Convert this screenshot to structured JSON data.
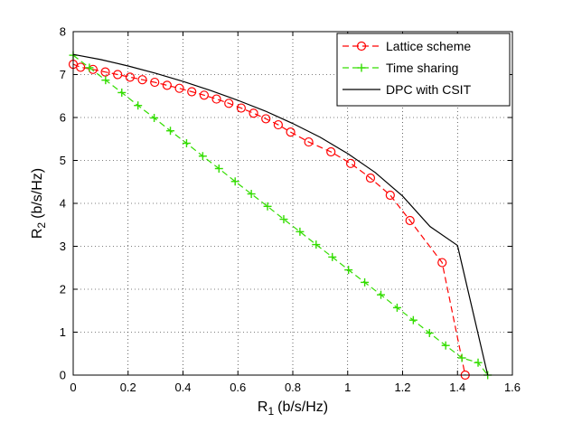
{
  "chart_data": {
    "type": "line",
    "title": "",
    "xlabel": "R",
    "xlabel_subscript": "1",
    "xlabel_unit": "(b/s/Hz)",
    "ylabel": "R",
    "ylabel_subscript": "2",
    "ylabel_unit": "(b/s/Hz)",
    "xlim": [
      0,
      1.6
    ],
    "ylim": [
      0,
      8
    ],
    "xticks": [
      0,
      0.2,
      0.4,
      0.6,
      0.8,
      1,
      1.2,
      1.4,
      1.6
    ],
    "xtick_labels": [
      "0",
      "0.2",
      "0.4",
      "0.6",
      "0.8",
      "1",
      "1.2",
      "1.4",
      "1.6"
    ],
    "yticks": [
      0,
      1,
      2,
      3,
      4,
      5,
      6,
      7,
      8
    ],
    "ytick_labels": [
      "0",
      "1",
      "2",
      "3",
      "4",
      "5",
      "6",
      "7",
      "8"
    ],
    "grid": true,
    "legend_position": "top-right",
    "series": [
      {
        "name": "Lattice scheme",
        "color": "#ff0000",
        "line_style": "dashed",
        "marker": "circle",
        "x": [
          0,
          0.027,
          0.072,
          0.117,
          0.162,
          0.207,
          0.252,
          0.297,
          0.342,
          0.387,
          0.432,
          0.477,
          0.522,
          0.567,
          0.612,
          0.657,
          0.702,
          0.747,
          0.792,
          0.858,
          0.939,
          1.011,
          1.083,
          1.155,
          1.227,
          1.344,
          1.428
        ],
        "y": [
          7.24,
          7.17,
          7.12,
          7.06,
          7.0,
          6.94,
          6.88,
          6.82,
          6.75,
          6.68,
          6.6,
          6.52,
          6.43,
          6.33,
          6.22,
          6.1,
          5.97,
          5.83,
          5.66,
          5.43,
          5.2,
          4.93,
          4.59,
          4.19,
          3.6,
          2.62,
          0.0
        ]
      },
      {
        "name": "Time sharing",
        "color": "#33dd00",
        "line_style": "dashed",
        "marker": "plus",
        "x": [
          0,
          0.059,
          0.118,
          0.177,
          0.236,
          0.295,
          0.354,
          0.413,
          0.472,
          0.531,
          0.59,
          0.649,
          0.708,
          0.767,
          0.826,
          0.885,
          0.944,
          1.003,
          1.062,
          1.121,
          1.18,
          1.239,
          1.298,
          1.357,
          1.416,
          1.475,
          1.51
        ],
        "y": [
          7.45,
          7.16,
          6.87,
          6.58,
          6.28,
          5.99,
          5.69,
          5.4,
          5.1,
          4.81,
          4.51,
          4.22,
          3.93,
          3.63,
          3.34,
          3.04,
          2.75,
          2.45,
          2.16,
          1.87,
          1.57,
          1.28,
          0.98,
          0.69,
          0.4,
          0.29,
          0.0
        ]
      },
      {
        "name": "DPC with CSIT",
        "color": "#000000",
        "line_style": "solid",
        "marker": "none",
        "x": [
          0,
          0.1,
          0.2,
          0.3,
          0.4,
          0.5,
          0.6,
          0.7,
          0.8,
          0.9,
          1.0,
          1.1,
          1.2,
          1.3,
          1.4,
          1.51
        ],
        "y": [
          7.47,
          7.35,
          7.2,
          7.03,
          6.84,
          6.63,
          6.4,
          6.15,
          5.86,
          5.54,
          5.16,
          4.72,
          4.17,
          3.46,
          3.02,
          0.0
        ]
      }
    ]
  }
}
